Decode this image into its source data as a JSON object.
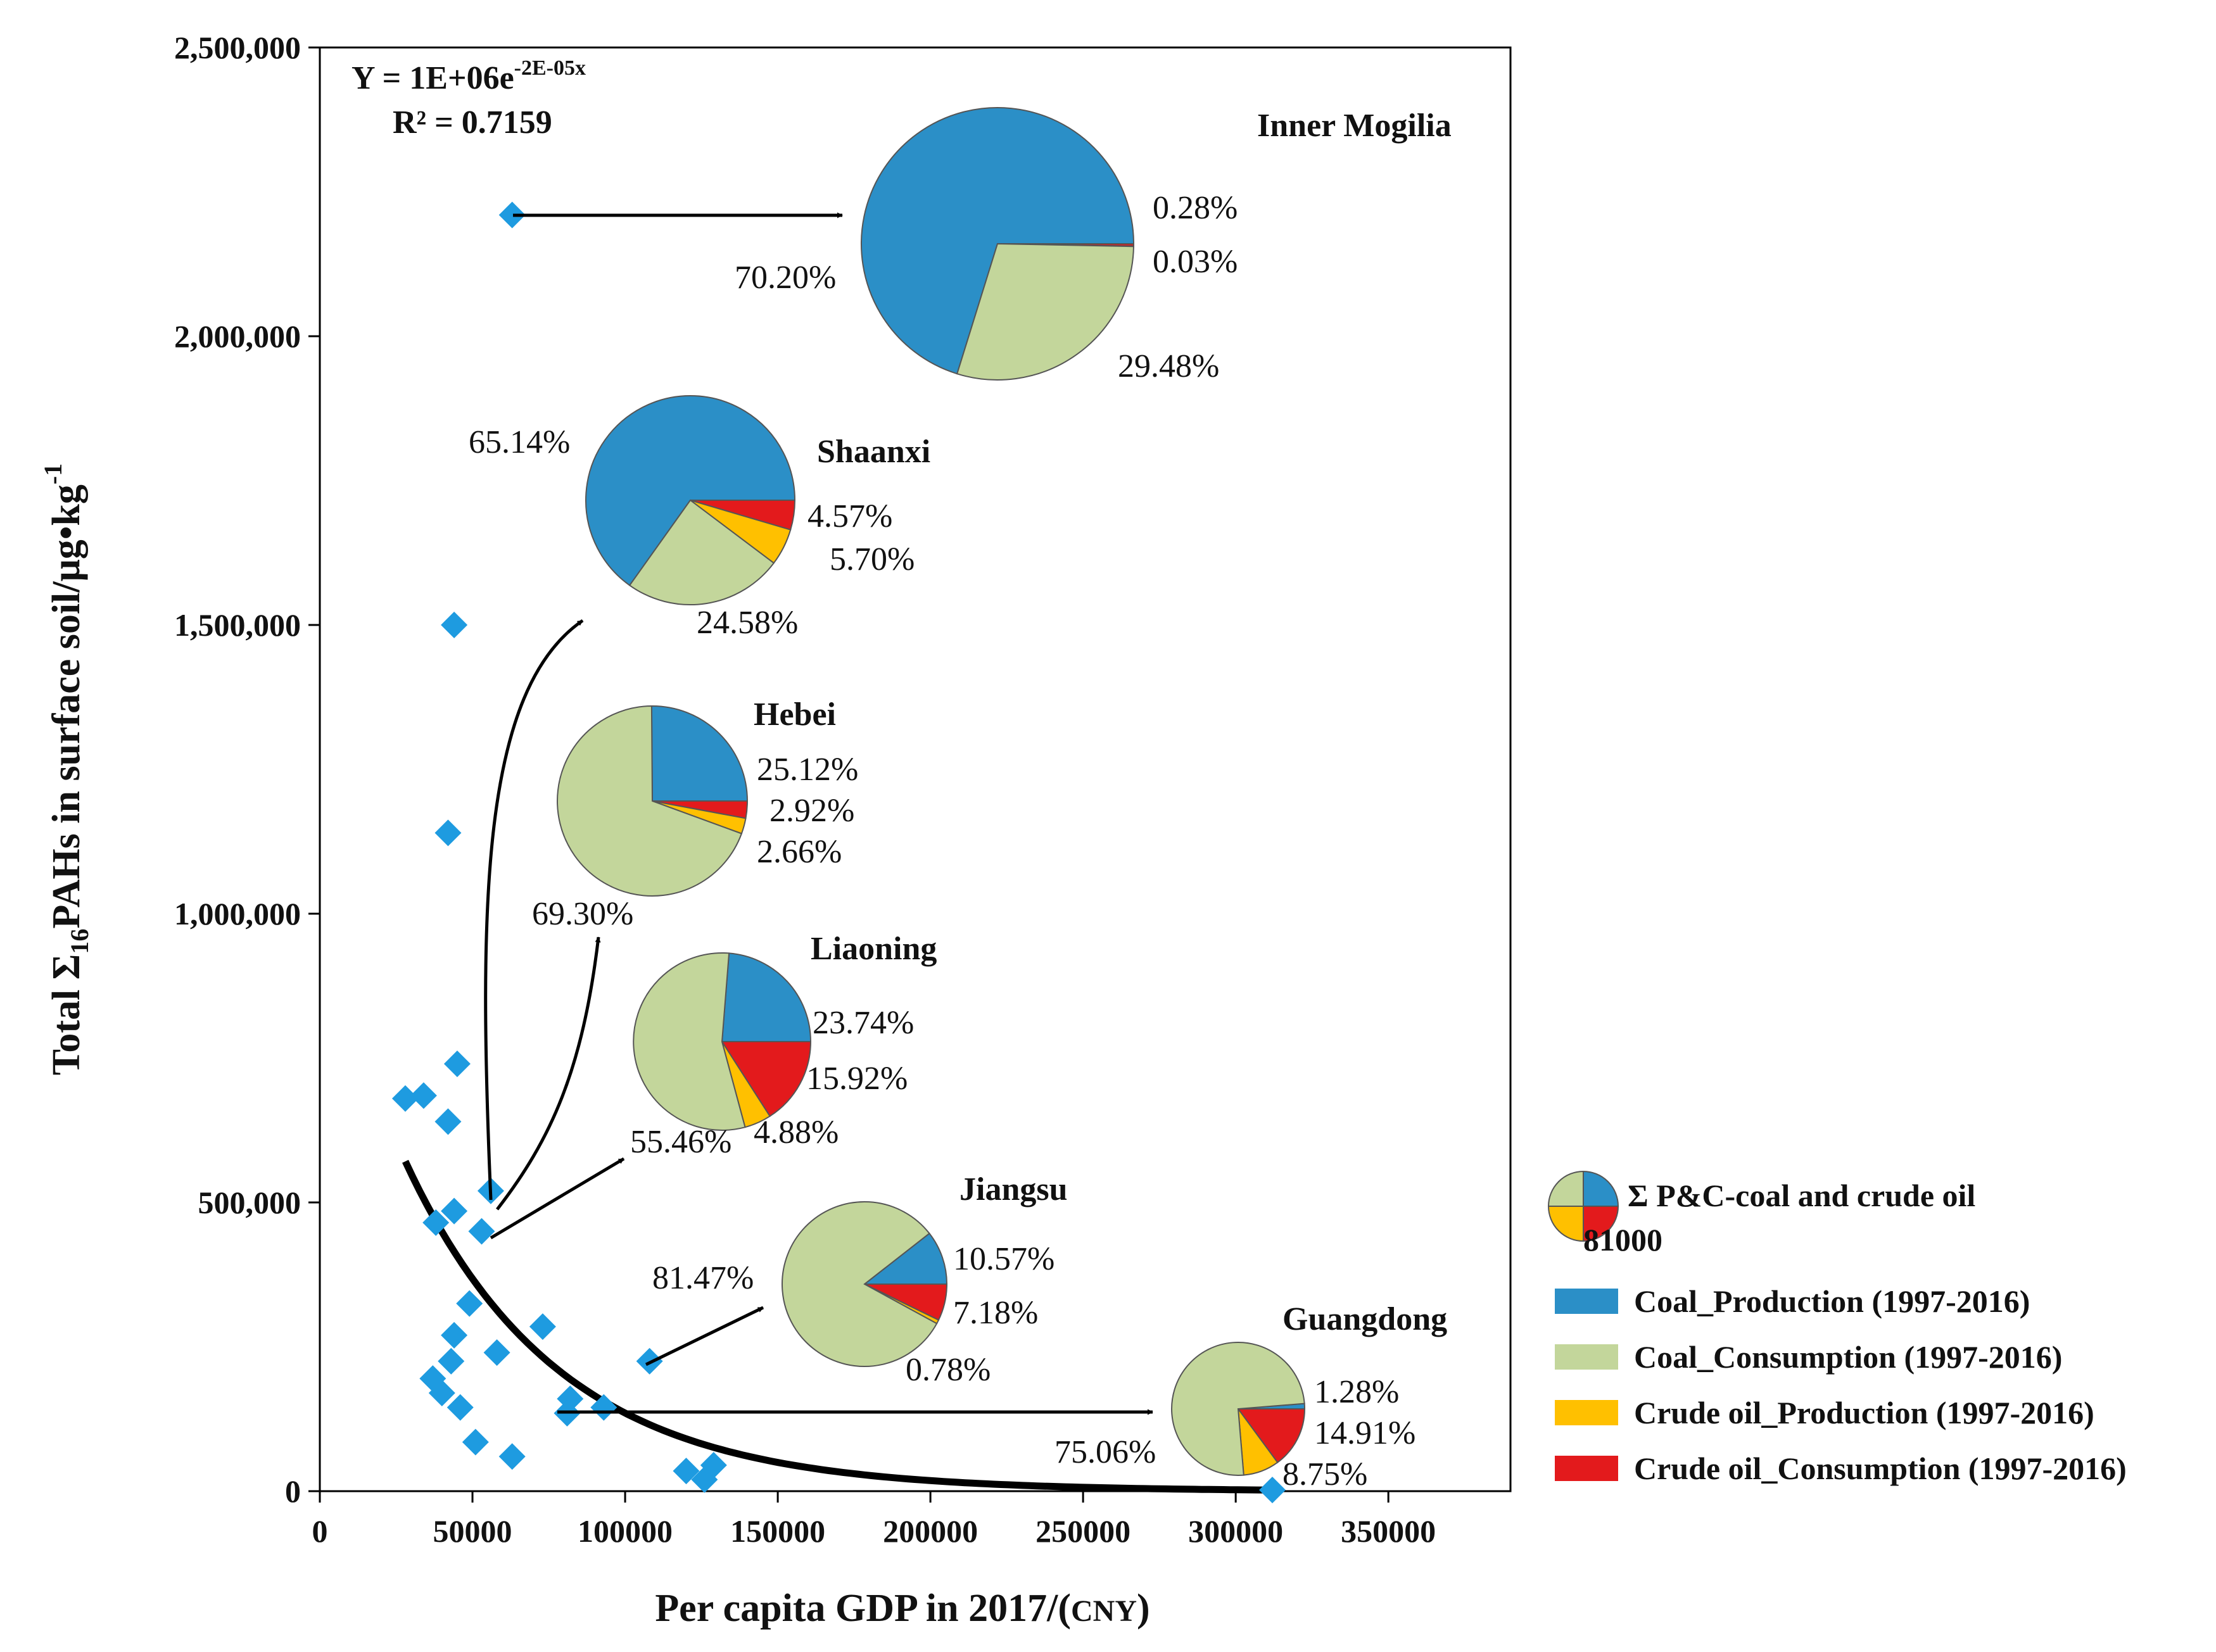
{
  "chart_data": {
    "type": "scatter",
    "xlabel": "Per capita GDP in 2017/(CNY)",
    "ylabel": "Total Σ16PAHs in surface soil/μg•kg-1",
    "xlim": [
      0,
      390000
    ],
    "ylim": [
      0,
      2500000
    ],
    "x_ticks": [
      "0",
      "50000",
      "100000",
      "150000",
      "200000",
      "250000",
      "300000",
      "350000"
    ],
    "y_ticks": [
      "0",
      "500,000",
      "1,000,000",
      "1,500,000",
      "2,000,000",
      "2,500,000"
    ],
    "equation": "Y = 1E+06e",
    "equation_exponent": "-2E-05x",
    "r_squared": "R² = 0.7159",
    "fit": {
      "type": "exponential",
      "a": 1000000,
      "b": -2e-05,
      "x_range": [
        28000,
        310000
      ]
    },
    "points": [
      {
        "x": 63000,
        "y": 2210000
      },
      {
        "x": 44000,
        "y": 1500000
      },
      {
        "x": 42000,
        "y": 1140000
      },
      {
        "x": 45000,
        "y": 740000
      },
      {
        "x": 28000,
        "y": 680000
      },
      {
        "x": 34000,
        "y": 685000
      },
      {
        "x": 42000,
        "y": 640000
      },
      {
        "x": 56000,
        "y": 520000
      },
      {
        "x": 44000,
        "y": 485000
      },
      {
        "x": 38000,
        "y": 465000
      },
      {
        "x": 53000,
        "y": 450000
      },
      {
        "x": 49000,
        "y": 325000
      },
      {
        "x": 73000,
        "y": 285000
      },
      {
        "x": 44000,
        "y": 270000
      },
      {
        "x": 58000,
        "y": 240000
      },
      {
        "x": 108000,
        "y": 225000
      },
      {
        "x": 43000,
        "y": 225000
      },
      {
        "x": 37000,
        "y": 195000
      },
      {
        "x": 40000,
        "y": 170000
      },
      {
        "x": 82000,
        "y": 160000
      },
      {
        "x": 46000,
        "y": 145000
      },
      {
        "x": 93000,
        "y": 145000
      },
      {
        "x": 81000,
        "y": 135000
      },
      {
        "x": 51000,
        "y": 85000
      },
      {
        "x": 63000,
        "y": 60000
      },
      {
        "x": 129000,
        "y": 45000
      },
      {
        "x": 120000,
        "y": 35000
      },
      {
        "x": 126000,
        "y": 20000
      },
      {
        "x": 312000,
        "y": 2000
      }
    ],
    "pies": [
      {
        "name": "Inner Mogilia",
        "values": [
          70.2,
          29.48,
          0.03,
          0.28
        ],
        "labels": [
          "70.20%",
          "29.48%",
          "0.03%",
          "0.28%"
        ]
      },
      {
        "name": "Shaanxi",
        "values": [
          65.14,
          24.58,
          5.7,
          4.57
        ],
        "labels": [
          "65.14%",
          "24.58%",
          "5.70%",
          "4.57%"
        ]
      },
      {
        "name": "Hebei",
        "values": [
          25.12,
          69.3,
          2.66,
          2.92
        ],
        "labels": [
          "25.12%",
          "69.30%",
          "2.66%",
          "2.92%"
        ]
      },
      {
        "name": "Liaoning",
        "values": [
          23.74,
          55.46,
          4.88,
          15.92
        ],
        "labels": [
          "23.74%",
          "55.46%",
          "4.88%",
          "15.92%"
        ]
      },
      {
        "name": "Jiangsu",
        "values": [
          10.57,
          81.47,
          0.78,
          7.18
        ],
        "labels": [
          "10.57%",
          "81.47%",
          "0.78%",
          "7.18%"
        ]
      },
      {
        "name": "Guangdong",
        "values": [
          1.28,
          75.06,
          8.75,
          14.91
        ],
        "labels": [
          "1.28%",
          "75.06%",
          "8.75%",
          "14.91%"
        ]
      }
    ],
    "legend": {
      "placement": "bottom-right",
      "summary_line1": "Σ P&C-coal and crude oil",
      "summary_line2": "81000",
      "items": [
        {
          "label": "Coal_Production (1997-2016)",
          "color": "#2b8fc7"
        },
        {
          "label": "Coal_Consumption (1997-2016)",
          "color": "#c3d69b"
        },
        {
          "label": "Crude oil_Production (1997-2016)",
          "color": "#ffc000"
        },
        {
          "label": "Crude oil_Consumption (1997-2016)",
          "color": "#e31a1c"
        }
      ]
    },
    "colors": {
      "points": "#1e9be0",
      "fit": "#000000"
    }
  }
}
